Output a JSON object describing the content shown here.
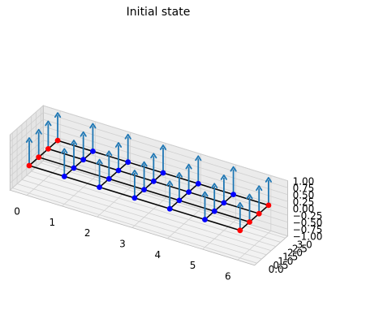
{
  "chart_data": {
    "type": "3d-scatter-quiver",
    "title": "Initial state",
    "xlabel": "",
    "ylabel": "",
    "zlabel": "",
    "xlim": [
      0,
      6
    ],
    "ylim": [
      0,
      3
    ],
    "zlim": [
      -1,
      1
    ],
    "x_ticks": [
      "0",
      "1",
      "2",
      "3",
      "4",
      "5",
      "6"
    ],
    "y_ticks": [
      "0.0",
      "0.5",
      "1.0",
      "1.5",
      "2.0",
      "2.5",
      "3.0"
    ],
    "z_ticks": [
      "−1.00",
      "−0.75",
      "−0.50",
      "−0.25",
      "0.00",
      "0.25",
      "0.50",
      "0.75",
      "1.00"
    ],
    "grid": true,
    "lattice": {
      "nx": 7,
      "ny": 4
    },
    "points": [
      {
        "x": 0,
        "y": 0,
        "z": 0,
        "color": "#ff0000"
      },
      {
        "x": 1,
        "y": 0,
        "z": 0,
        "color": "#0000ff"
      },
      {
        "x": 2,
        "y": 0,
        "z": 0,
        "color": "#0000ff"
      },
      {
        "x": 3,
        "y": 0,
        "z": 0,
        "color": "#0000ff"
      },
      {
        "x": 4,
        "y": 0,
        "z": 0,
        "color": "#0000ff"
      },
      {
        "x": 5,
        "y": 0,
        "z": 0,
        "color": "#0000ff"
      },
      {
        "x": 6,
        "y": 0,
        "z": 0,
        "color": "#ff0000"
      },
      {
        "x": 0,
        "y": 1,
        "z": 0,
        "color": "#ff0000"
      },
      {
        "x": 1,
        "y": 1,
        "z": 0,
        "color": "#0000ff"
      },
      {
        "x": 2,
        "y": 1,
        "z": 0,
        "color": "#0000ff"
      },
      {
        "x": 3,
        "y": 1,
        "z": 0,
        "color": "#0000ff"
      },
      {
        "x": 4,
        "y": 1,
        "z": 0,
        "color": "#0000ff"
      },
      {
        "x": 5,
        "y": 1,
        "z": 0,
        "color": "#0000ff"
      },
      {
        "x": 6,
        "y": 1,
        "z": 0,
        "color": "#ff0000"
      },
      {
        "x": 0,
        "y": 2,
        "z": 0,
        "color": "#ff0000"
      },
      {
        "x": 1,
        "y": 2,
        "z": 0,
        "color": "#0000ff"
      },
      {
        "x": 2,
        "y": 2,
        "z": 0,
        "color": "#0000ff"
      },
      {
        "x": 3,
        "y": 2,
        "z": 0,
        "color": "#0000ff"
      },
      {
        "x": 4,
        "y": 2,
        "z": 0,
        "color": "#0000ff"
      },
      {
        "x": 5,
        "y": 2,
        "z": 0,
        "color": "#0000ff"
      },
      {
        "x": 6,
        "y": 2,
        "z": 0,
        "color": "#ff0000"
      },
      {
        "x": 0,
        "y": 3,
        "z": 0,
        "color": "#ff0000"
      },
      {
        "x": 1,
        "y": 3,
        "z": 0,
        "color": "#0000ff"
      },
      {
        "x": 2,
        "y": 3,
        "z": 0,
        "color": "#0000ff"
      },
      {
        "x": 3,
        "y": 3,
        "z": 0,
        "color": "#0000ff"
      },
      {
        "x": 4,
        "y": 3,
        "z": 0,
        "color": "#0000ff"
      },
      {
        "x": 5,
        "y": 3,
        "z": 0,
        "color": "#0000ff"
      },
      {
        "x": 6,
        "y": 3,
        "z": 0,
        "color": "#ff0000"
      }
    ],
    "arrow_vector": {
      "dx": 0,
      "dy": 0,
      "dz": 1
    },
    "colors": {
      "edge": "#ff0000",
      "interior": "#0000ff",
      "arrow": "#1f77b4",
      "lattice": "#000000"
    }
  }
}
